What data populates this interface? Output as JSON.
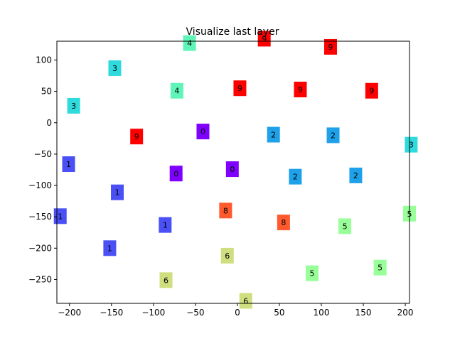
{
  "chart_data": {
    "type": "scatter",
    "title": "Visualize last layer",
    "xlabel": "",
    "ylabel": "",
    "xlim": [
      -215,
      205
    ],
    "ylim": [
      -288,
      130
    ],
    "xticks": [
      -200,
      -150,
      -100,
      -50,
      0,
      50,
      100,
      150,
      200
    ],
    "yticks": [
      100,
      50,
      0,
      -50,
      -100,
      -150,
      -200,
      -250
    ],
    "grid": false,
    "label_colors": {
      "0": "#7f00ff",
      "1": "#4a50f5",
      "2": "#1ea1e8",
      "3": "#2fdadd",
      "4": "#5ff5b8",
      "5": "#99ff99",
      "6": "#cfdf7f",
      "8": "#ff5a2e",
      "9": "#ff0000"
    },
    "points": [
      {
        "x": -57,
        "y": 127,
        "label": "4"
      },
      {
        "x": 32,
        "y": 134,
        "label": "9"
      },
      {
        "x": 111,
        "y": 121,
        "label": "9"
      },
      {
        "x": -146,
        "y": 87,
        "label": "3"
      },
      {
        "x": -72,
        "y": 51,
        "label": "4"
      },
      {
        "x": 3,
        "y": 55,
        "label": "9"
      },
      {
        "x": 75,
        "y": 53,
        "label": "9"
      },
      {
        "x": 160,
        "y": 51,
        "label": "9"
      },
      {
        "x": -195,
        "y": 27,
        "label": "3"
      },
      {
        "x": -41,
        "y": -14,
        "label": "0"
      },
      {
        "x": -120,
        "y": -22,
        "label": "9"
      },
      {
        "x": 43,
        "y": -19,
        "label": "2"
      },
      {
        "x": 114,
        "y": -20,
        "label": "2"
      },
      {
        "x": 207,
        "y": -35,
        "label": "3"
      },
      {
        "x": -201,
        "y": -66,
        "label": "1"
      },
      {
        "x": -73,
        "y": -81,
        "label": "0"
      },
      {
        "x": -6,
        "y": -74,
        "label": "0"
      },
      {
        "x": 69,
        "y": -86,
        "label": "2"
      },
      {
        "x": 141,
        "y": -84,
        "label": "2"
      },
      {
        "x": -143,
        "y": -111,
        "label": "1"
      },
      {
        "x": -211,
        "y": -149,
        "label": "1"
      },
      {
        "x": -14,
        "y": -140,
        "label": "8"
      },
      {
        "x": -86,
        "y": -163,
        "label": "1"
      },
      {
        "x": 55,
        "y": -159,
        "label": "8"
      },
      {
        "x": 128,
        "y": -165,
        "label": "5"
      },
      {
        "x": 205,
        "y": -145,
        "label": "5"
      },
      {
        "x": -152,
        "y": -200,
        "label": "1"
      },
      {
        "x": -12,
        "y": -212,
        "label": "6"
      },
      {
        "x": 89,
        "y": -240,
        "label": "5"
      },
      {
        "x": 170,
        "y": -231,
        "label": "5"
      },
      {
        "x": -85,
        "y": -251,
        "label": "6"
      },
      {
        "x": 10,
        "y": -284,
        "label": "6"
      }
    ]
  }
}
